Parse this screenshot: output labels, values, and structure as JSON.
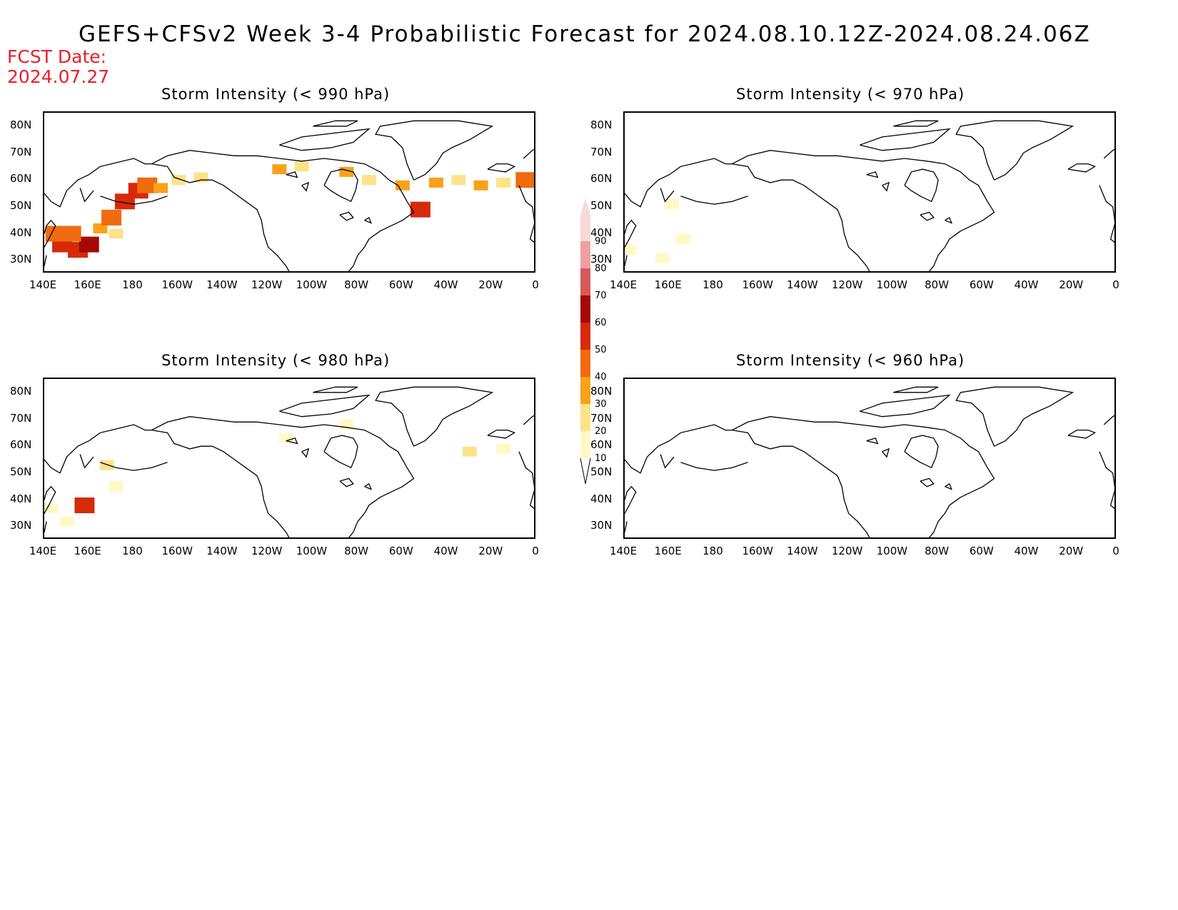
{
  "title": "GEFS+CFSv2 Week 3-4 Probabilistic Forecast for 2024.08.10.12Z-2024.08.24.06Z",
  "fcst_label": "FCST Date:",
  "fcst_date": "2024.07.27",
  "lat_labels": [
    "80N",
    "70N",
    "60N",
    "50N",
    "40N",
    "30N"
  ],
  "lon_labels": [
    "140E",
    "160E",
    "180",
    "160W",
    "140W",
    "120W",
    "100W",
    "80W",
    "60W",
    "40W",
    "20W",
    "0"
  ],
  "colorbar": {
    "levels": [
      "10",
      "20",
      "30",
      "40",
      "50",
      "60",
      "70",
      "80",
      "90"
    ],
    "colors": [
      "#fff9c4",
      "#fce38a",
      "#f9a11b",
      "#f06a10",
      "#d62a0a",
      "#a30a06",
      "#d65a5a",
      "#eea0a0",
      "#f9d8d8"
    ]
  },
  "panels": [
    {
      "id": "990",
      "title": "Storm Intensity (< 990 hPa)"
    },
    {
      "id": "970",
      "title": "Storm Intensity (< 970 hPa)"
    },
    {
      "id": "980",
      "title": "Storm Intensity (< 980 hPa)"
    },
    {
      "id": "960",
      "title": "Storm Intensity (< 960 hPa)"
    }
  ],
  "probability_patches": {
    "990": [
      {
        "lon": 148,
        "lat": 36,
        "level": 5
      },
      {
        "lon": 155,
        "lat": 34,
        "level": 5
      },
      {
        "lon": 160,
        "lat": 36,
        "level": 6
      },
      {
        "lon": 145,
        "lat": 40,
        "level": 4
      },
      {
        "lon": 152,
        "lat": 40,
        "level": 4
      },
      {
        "lon": 165,
        "lat": 42,
        "level": 3
      },
      {
        "lon": 170,
        "lat": 46,
        "level": 4
      },
      {
        "lon": 176,
        "lat": 52,
        "level": 5
      },
      {
        "lon": 182,
        "lat": 56,
        "level": 5
      },
      {
        "lon": 186,
        "lat": 58,
        "level": 4
      },
      {
        "lon": 192,
        "lat": 57,
        "level": 3
      },
      {
        "lon": 172,
        "lat": 40,
        "level": 2
      },
      {
        "lon": 200,
        "lat": 60,
        "level": 2
      },
      {
        "lon": 210,
        "lat": 61,
        "level": 2
      },
      {
        "lon": 245,
        "lat": 64,
        "level": 3
      },
      {
        "lon": 255,
        "lat": 65,
        "level": 2
      },
      {
        "lon": 275,
        "lat": 63,
        "level": 3
      },
      {
        "lon": 285,
        "lat": 60,
        "level": 2
      },
      {
        "lon": 300,
        "lat": 58,
        "level": 3
      },
      {
        "lon": 308,
        "lat": 49,
        "level": 5
      },
      {
        "lon": 315,
        "lat": 59,
        "level": 3
      },
      {
        "lon": 325,
        "lat": 60,
        "level": 2
      },
      {
        "lon": 335,
        "lat": 58,
        "level": 3
      },
      {
        "lon": 345,
        "lat": 59,
        "level": 2
      },
      {
        "lon": 355,
        "lat": 60,
        "level": 4
      }
    ],
    "970": [
      {
        "lon": 161,
        "lat": 51,
        "level": 1
      },
      {
        "lon": 142,
        "lat": 34,
        "level": 1
      },
      {
        "lon": 157,
        "lat": 31,
        "level": 1
      },
      {
        "lon": 166,
        "lat": 38,
        "level": 1
      }
    ],
    "980": [
      {
        "lon": 143,
        "lat": 37,
        "level": 1
      },
      {
        "lon": 150,
        "lat": 32,
        "level": 1
      },
      {
        "lon": 158,
        "lat": 38,
        "level": 5
      },
      {
        "lon": 168,
        "lat": 53,
        "level": 2
      },
      {
        "lon": 172,
        "lat": 45,
        "level": 1
      },
      {
        "lon": 248,
        "lat": 63,
        "level": 1
      },
      {
        "lon": 275,
        "lat": 68,
        "level": 1
      },
      {
        "lon": 330,
        "lat": 58,
        "level": 2
      },
      {
        "lon": 345,
        "lat": 59,
        "level": 1
      }
    ],
    "960": []
  }
}
